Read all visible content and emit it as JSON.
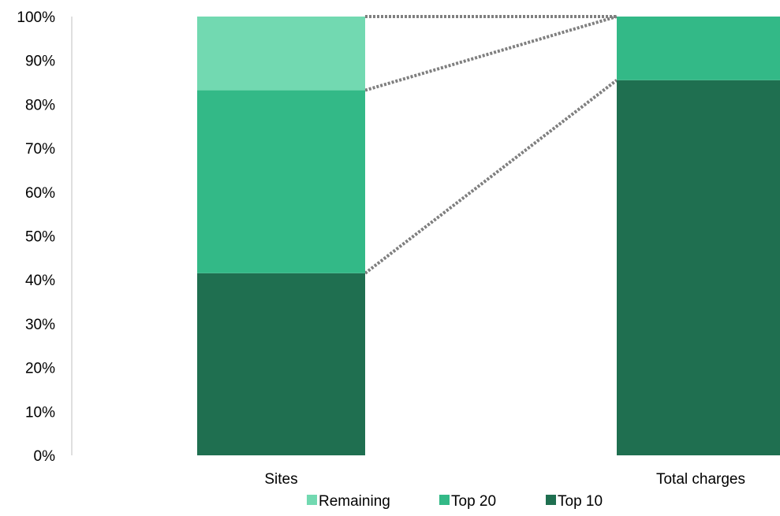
{
  "chart_data": {
    "type": "bar",
    "stacked": true,
    "title": "",
    "xlabel": "",
    "ylabel": "",
    "ylim": [
      0,
      100
    ],
    "y_ticks": [
      "0%",
      "10%",
      "20%",
      "30%",
      "40%",
      "50%",
      "60%",
      "70%",
      "80%",
      "90%",
      "100%"
    ],
    "categories": [
      "Sites",
      "Total charges"
    ],
    "series": [
      {
        "name": "Top 10",
        "color": "#1f6f50",
        "values": [
          41.5,
          85.5
        ]
      },
      {
        "name": "Top 20",
        "color": "#33b987",
        "values": [
          41.7,
          14.5
        ]
      },
      {
        "name": "Remaining",
        "color": "#72d9b1",
        "values": [
          16.8,
          0
        ]
      }
    ],
    "legend": {
      "placement": "bottom",
      "order": [
        "Remaining",
        "Top 20",
        "Top 10"
      ]
    },
    "connector_lines": {
      "style": "dotted",
      "color": "#7f7f7f"
    },
    "grid": false
  }
}
